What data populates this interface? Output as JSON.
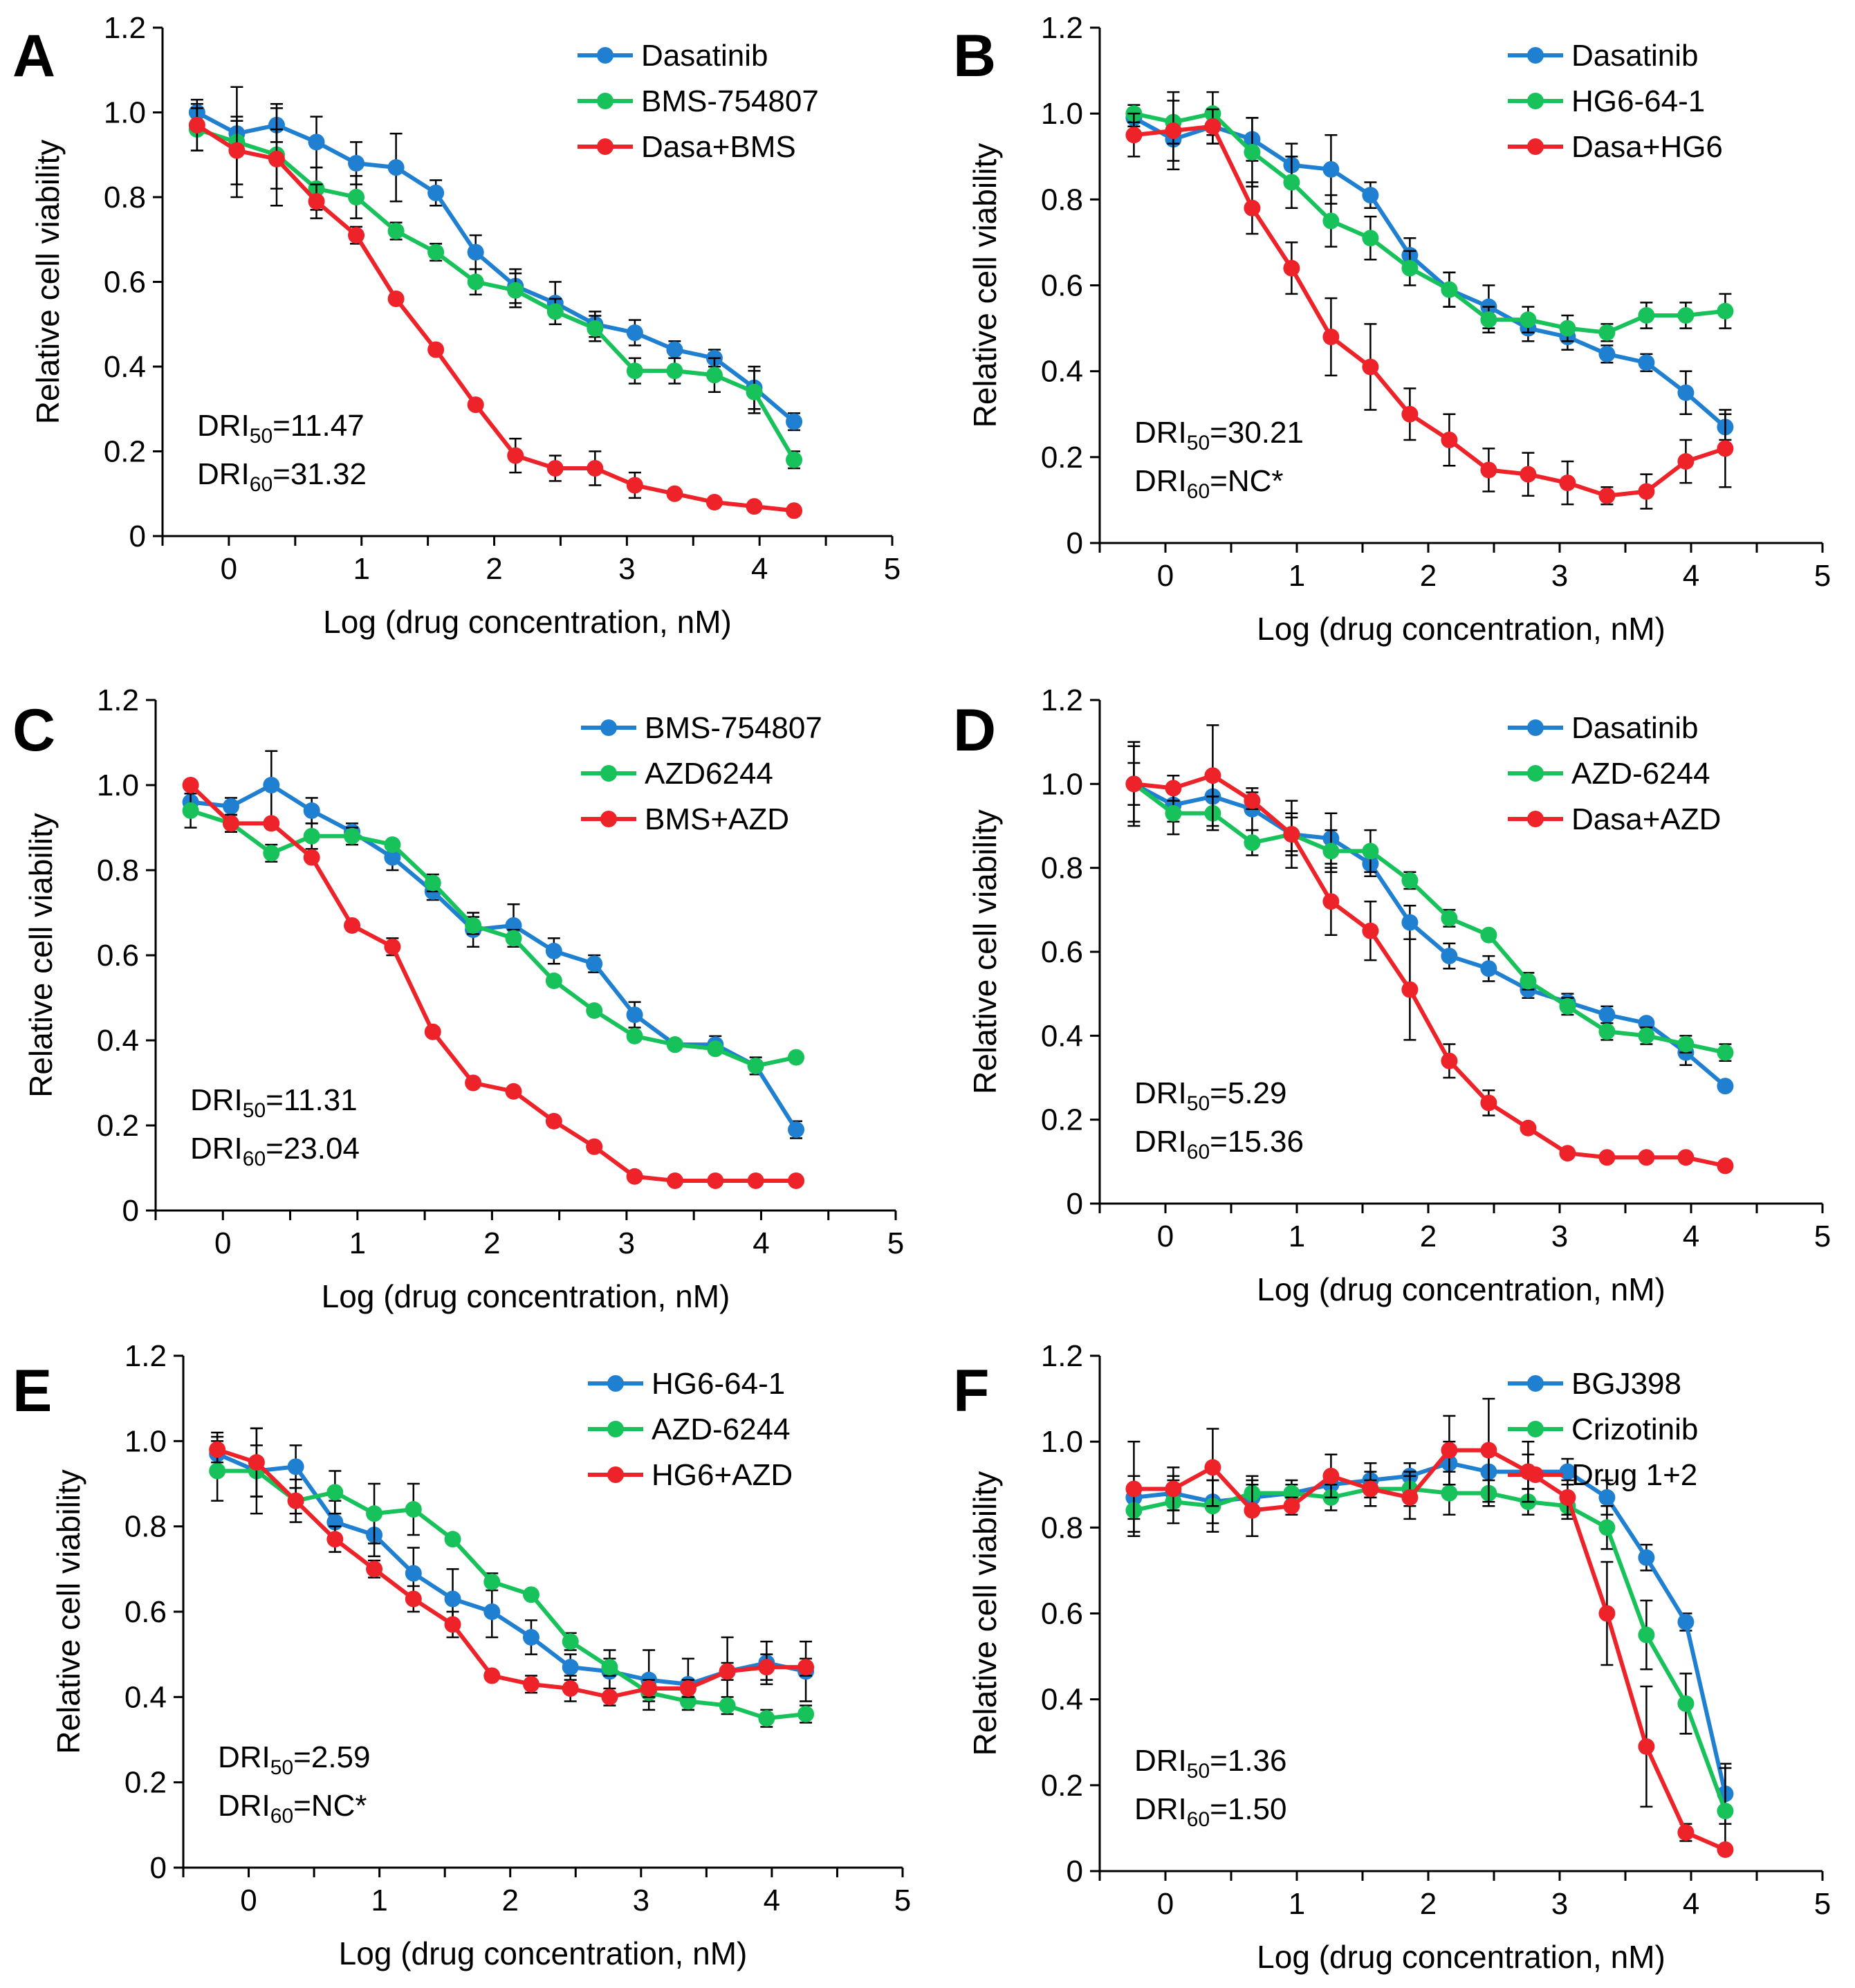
{
  "figure": {
    "x_title": "Log (drug concentration, nM)",
    "y_title": "Relative cell viability",
    "x_ticks": [
      "0",
      "1",
      "2",
      "3",
      "4",
      "5"
    ],
    "y_ticks": [
      "0",
      "0.2",
      "0.4",
      "0.6",
      "0.8",
      "1.0",
      "1.2"
    ],
    "colors": {
      "blue": "#1f7fd1",
      "green": "#17c25a",
      "red": "#ee2229"
    }
  },
  "chart_data": [
    {
      "panel": "A",
      "type": "line",
      "x": [
        -0.24,
        0.06,
        0.36,
        0.66,
        0.96,
        1.26,
        1.56,
        1.86,
        2.16,
        2.46,
        2.76,
        3.06,
        3.36,
        3.66,
        3.96,
        4.26
      ],
      "xlim": [
        -0.5,
        5
      ],
      "ylim": [
        0,
        1.2
      ],
      "xlabel": "Log (drug concentration, nM)",
      "ylabel": "Relative cell viability",
      "series": [
        {
          "name": "Dasatinib",
          "color": "blue",
          "values": [
            1.0,
            0.95,
            0.97,
            0.93,
            0.88,
            0.87,
            0.81,
            0.67,
            0.59,
            0.55,
            0.5,
            0.48,
            0.44,
            0.42,
            0.35,
            0.27
          ],
          "errors": [
            0.02,
            0.03,
            0.04,
            0.06,
            0.05,
            0.08,
            0.03,
            0.04,
            0.04,
            0.05,
            0.03,
            0.03,
            0.02,
            0.02,
            0.05,
            0.02
          ]
        },
        {
          "name": "BMS-754807",
          "color": "green",
          "values": [
            0.96,
            0.93,
            0.9,
            0.82,
            0.8,
            0.72,
            0.67,
            0.6,
            0.58,
            0.53,
            0.49,
            0.39,
            0.39,
            0.38,
            0.34,
            0.18
          ],
          "errors": [
            0.05,
            0.13,
            0.12,
            0.05,
            0.05,
            0.02,
            0.02,
            0.03,
            0.04,
            0.03,
            0.03,
            0.03,
            0.03,
            0.04,
            0.05,
            0.02
          ]
        },
        {
          "name": "Dasa+BMS",
          "color": "red",
          "values": [
            0.97,
            0.91,
            0.89,
            0.79,
            0.71,
            0.56,
            0.44,
            0.31,
            0.19,
            0.16,
            0.16,
            0.12,
            0.1,
            0.08,
            0.07,
            0.06
          ],
          "errors": [
            0.06,
            0.08,
            0.07,
            0.04,
            0.02,
            0.01,
            0.01,
            0.01,
            0.04,
            0.03,
            0.04,
            0.03,
            0.01,
            0.01,
            0.01,
            0.01
          ]
        }
      ],
      "annotation": {
        "dri50_label": "DRI",
        "dri50_sub": "50",
        "dri50_value": "=11.47",
        "dri60_label": "DRI",
        "dri60_sub": "60",
        "dri60_value": "=31.32"
      }
    },
    {
      "panel": "B",
      "type": "line",
      "x": [
        -0.24,
        0.06,
        0.36,
        0.66,
        0.96,
        1.26,
        1.56,
        1.86,
        2.16,
        2.46,
        2.76,
        3.06,
        3.36,
        3.66,
        3.96,
        4.26
      ],
      "xlim": [
        -0.5,
        5
      ],
      "ylim": [
        0,
        1.2
      ],
      "xlabel": "Log (drug concentration, nM)",
      "ylabel": "Relative cell viability",
      "series": [
        {
          "name": "Dasatinib",
          "color": "blue",
          "values": [
            0.99,
            0.94,
            0.97,
            0.94,
            0.88,
            0.87,
            0.81,
            0.67,
            0.59,
            0.55,
            0.5,
            0.48,
            0.44,
            0.42,
            0.35,
            0.27
          ],
          "errors": [
            0.02,
            0.05,
            0.04,
            0.05,
            0.05,
            0.08,
            0.03,
            0.04,
            0.04,
            0.05,
            0.03,
            0.03,
            0.02,
            0.02,
            0.05,
            0.03
          ]
        },
        {
          "name": "HG6-64-1",
          "color": "green",
          "values": [
            1.0,
            0.98,
            1.0,
            0.91,
            0.84,
            0.75,
            0.71,
            0.64,
            0.59,
            0.52,
            0.52,
            0.5,
            0.49,
            0.53,
            0.53,
            0.54
          ],
          "errors": [
            0.02,
            0.05,
            0.05,
            0.08,
            0.06,
            0.06,
            0.05,
            0.04,
            0.04,
            0.03,
            0.03,
            0.03,
            0.02,
            0.03,
            0.03,
            0.04
          ]
        },
        {
          "name": "Dasa+HG6",
          "color": "red",
          "values": [
            0.95,
            0.96,
            0.97,
            0.78,
            0.64,
            0.48,
            0.41,
            0.3,
            0.24,
            0.17,
            0.16,
            0.14,
            0.11,
            0.12,
            0.19,
            0.22
          ],
          "errors": [
            0.05,
            0.09,
            0.04,
            0.06,
            0.06,
            0.09,
            0.1,
            0.06,
            0.06,
            0.05,
            0.05,
            0.05,
            0.02,
            0.04,
            0.05,
            0.09
          ]
        }
      ],
      "annotation": {
        "dri50_label": "DRI",
        "dri50_sub": "50",
        "dri50_value": "=30.21",
        "dri60_label": "DRI",
        "dri60_sub": "60",
        "dri60_value": "=NC*"
      }
    },
    {
      "panel": "C",
      "type": "line",
      "x": [
        -0.24,
        0.06,
        0.36,
        0.66,
        0.96,
        1.26,
        1.56,
        1.86,
        2.16,
        2.46,
        2.76,
        3.06,
        3.36,
        3.66,
        3.96,
        4.26
      ],
      "xlim": [
        -0.5,
        5
      ],
      "ylim": [
        0,
        1.2
      ],
      "xlabel": "Log (drug concentration, nM)",
      "ylabel": "Relative cell viability",
      "series": [
        {
          "name": "BMS-754807",
          "color": "blue",
          "values": [
            0.96,
            0.95,
            1.0,
            0.94,
            0.89,
            0.83,
            0.75,
            0.66,
            0.67,
            0.61,
            0.58,
            0.46,
            0.39,
            0.39,
            0.34,
            0.19
          ],
          "errors": [
            0.02,
            0.02,
            0.08,
            0.03,
            0.02,
            0.03,
            0.02,
            0.04,
            0.05,
            0.03,
            0.02,
            0.03,
            0.01,
            0.02,
            0.02,
            0.02
          ]
        },
        {
          "name": "AZD6244",
          "color": "green",
          "values": [
            0.94,
            0.91,
            0.84,
            0.88,
            0.88,
            0.86,
            0.77,
            0.67,
            0.64,
            0.54,
            0.47,
            0.41,
            0.39,
            0.38,
            0.34,
            0.36
          ],
          "errors": [
            0.04,
            0.02,
            0.02,
            0.03,
            0.02,
            0.01,
            0.02,
            0.02,
            0.02,
            0.01,
            0.01,
            0.01,
            0.01,
            0.01,
            0.01,
            0.01
          ]
        },
        {
          "name": "BMS+AZD",
          "color": "red",
          "values": [
            1.0,
            0.91,
            0.91,
            0.83,
            0.67,
            0.62,
            0.42,
            0.3,
            0.28,
            0.21,
            0.15,
            0.08,
            0.07,
            0.07,
            0.07,
            0.07
          ],
          "errors": [
            0.01,
            0.02,
            0.01,
            0.01,
            0.01,
            0.02,
            0.01,
            0.01,
            0.01,
            0.01,
            0.01,
            0.01,
            0.01,
            0.01,
            0.01,
            0.01
          ]
        }
      ],
      "annotation": {
        "dri50_label": "DRI",
        "dri50_sub": "50",
        "dri50_value": "=11.31",
        "dri60_label": "DRI",
        "dri60_sub": "60",
        "dri60_value": "=23.04"
      }
    },
    {
      "panel": "D",
      "type": "line",
      "x": [
        -0.24,
        0.06,
        0.36,
        0.66,
        0.96,
        1.26,
        1.56,
        1.86,
        2.16,
        2.46,
        2.76,
        3.06,
        3.36,
        3.66,
        3.96,
        4.26
      ],
      "xlim": [
        -0.5,
        5
      ],
      "ylim": [
        0,
        1.2
      ],
      "xlabel": "Log (drug concentration, nM)",
      "ylabel": "Relative cell viability",
      "series": [
        {
          "name": "Dasatinib",
          "color": "blue",
          "values": [
            1.0,
            0.95,
            0.97,
            0.94,
            0.88,
            0.87,
            0.81,
            0.67,
            0.59,
            0.56,
            0.51,
            0.48,
            0.45,
            0.43,
            0.36,
            0.28
          ],
          "errors": [
            0.05,
            0.04,
            0.04,
            0.05,
            0.05,
            0.06,
            0.03,
            0.04,
            0.03,
            0.03,
            0.02,
            0.02,
            0.02,
            0.01,
            0.03,
            0.01
          ]
        },
        {
          "name": "AZD-6244",
          "color": "green",
          "values": [
            1.0,
            0.93,
            0.93,
            0.86,
            0.88,
            0.84,
            0.84,
            0.77,
            0.68,
            0.64,
            0.53,
            0.47,
            0.41,
            0.4,
            0.38,
            0.36
          ],
          "errors": [
            0.09,
            0.05,
            0.04,
            0.03,
            0.04,
            0.05,
            0.05,
            0.02,
            0.02,
            0.01,
            0.02,
            0.02,
            0.02,
            0.02,
            0.02,
            0.02
          ]
        },
        {
          "name": "Dasa+AZD",
          "color": "red",
          "values": [
            1.0,
            0.99,
            1.02,
            0.96,
            0.88,
            0.72,
            0.65,
            0.51,
            0.34,
            0.24,
            0.18,
            0.12,
            0.11,
            0.11,
            0.11,
            0.09
          ],
          "errors": [
            0.1,
            0.03,
            0.12,
            0.02,
            0.08,
            0.08,
            0.07,
            0.12,
            0.04,
            0.03,
            0.01,
            0.01,
            0.01,
            0.01,
            0.01,
            0.01
          ]
        }
      ],
      "annotation": {
        "dri50_label": "DRI",
        "dri50_sub": "50",
        "dri50_value": "=5.29",
        "dri60_label": "DRI",
        "dri60_sub": "60",
        "dri60_value": "=15.36"
      }
    },
    {
      "panel": "E",
      "type": "line",
      "x": [
        -0.24,
        0.06,
        0.36,
        0.66,
        0.96,
        1.26,
        1.56,
        1.86,
        2.16,
        2.46,
        2.76,
        3.06,
        3.36,
        3.66,
        3.96,
        4.26
      ],
      "xlim": [
        -0.5,
        5
      ],
      "ylim": [
        0,
        1.2
      ],
      "xlabel": "Log (drug concentration, nM)",
      "ylabel": "Relative cell viability",
      "series": [
        {
          "name": "HG6-64-1",
          "color": "blue",
          "values": [
            0.97,
            0.93,
            0.94,
            0.81,
            0.78,
            0.69,
            0.63,
            0.6,
            0.54,
            0.47,
            0.46,
            0.44,
            0.43,
            0.46,
            0.48,
            0.46
          ],
          "errors": [
            0.05,
            0.06,
            0.05,
            0.05,
            0.05,
            0.06,
            0.07,
            0.06,
            0.04,
            0.03,
            0.05,
            0.07,
            0.06,
            0.08,
            0.05,
            0.07
          ]
        },
        {
          "name": "AZD-6244",
          "color": "green",
          "values": [
            0.93,
            0.93,
            0.86,
            0.88,
            0.83,
            0.84,
            0.77,
            0.67,
            0.64,
            0.53,
            0.47,
            0.41,
            0.39,
            0.38,
            0.35,
            0.36
          ],
          "errors": [
            0.07,
            0.1,
            0.03,
            0.05,
            0.07,
            0.06,
            0.01,
            0.02,
            0.01,
            0.02,
            0.02,
            0.02,
            0.02,
            0.02,
            0.02,
            0.02
          ]
        },
        {
          "name": "HG6+AZD",
          "color": "red",
          "values": [
            0.98,
            0.95,
            0.86,
            0.77,
            0.7,
            0.63,
            0.57,
            0.45,
            0.43,
            0.42,
            0.4,
            0.42,
            0.42,
            0.46,
            0.47,
            0.47
          ],
          "errors": [
            0.03,
            0.08,
            0.05,
            0.03,
            0.02,
            0.03,
            0.03,
            0.01,
            0.02,
            0.03,
            0.02,
            0.02,
            0.02,
            0.02,
            0.03,
            0.02
          ]
        }
      ],
      "annotation": {
        "dri50_label": "DRI",
        "dri50_sub": "50",
        "dri50_value": "=2.59",
        "dri60_label": "DRI",
        "dri60_sub": "60",
        "dri60_value": "=NC*"
      }
    },
    {
      "panel": "F",
      "type": "line",
      "x": [
        -0.24,
        0.06,
        0.36,
        0.66,
        0.96,
        1.26,
        1.56,
        1.86,
        2.16,
        2.46,
        2.76,
        3.06,
        3.36,
        3.66,
        3.96,
        4.26
      ],
      "xlim": [
        -0.5,
        5
      ],
      "ylim": [
        0,
        1.2
      ],
      "xlabel": "Log (drug concentration, nM)",
      "ylabel": "Relative cell viability",
      "series": [
        {
          "name": "BGJ398",
          "color": "blue",
          "values": [
            0.87,
            0.88,
            0.86,
            0.87,
            0.88,
            0.9,
            0.91,
            0.92,
            0.95,
            0.93,
            0.93,
            0.93,
            0.87,
            0.73,
            0.58,
            0.18
          ],
          "errors": [
            0.05,
            0.04,
            0.05,
            0.04,
            0.02,
            0.03,
            0.04,
            0.03,
            0.05,
            0.04,
            0.04,
            0.03,
            0.04,
            0.03,
            0.02,
            0.07
          ]
        },
        {
          "name": "Crizotinib",
          "color": "green",
          "values": [
            0.84,
            0.86,
            0.85,
            0.88,
            0.88,
            0.87,
            0.89,
            0.89,
            0.88,
            0.88,
            0.86,
            0.85,
            0.8,
            0.55,
            0.39,
            0.14
          ],
          "errors": [
            0.05,
            0.05,
            0.06,
            0.04,
            0.03,
            0.03,
            0.04,
            0.04,
            0.05,
            0.03,
            0.03,
            0.03,
            0.05,
            0.08,
            0.07,
            0.1
          ]
        },
        {
          "name": "Drug 1+2",
          "color": "red",
          "values": [
            0.89,
            0.89,
            0.94,
            0.84,
            0.85,
            0.92,
            0.89,
            0.87,
            0.98,
            0.98,
            0.93,
            0.87,
            0.6,
            0.29,
            0.09,
            0.05
          ],
          "errors": [
            0.11,
            0.05,
            0.09,
            0.06,
            0.02,
            0.05,
            0.02,
            0.05,
            0.08,
            0.12,
            0.07,
            0.04,
            0.12,
            0.14,
            0.02,
            0.01
          ]
        }
      ],
      "annotation": {
        "dri50_label": "DRI",
        "dri50_sub": "50",
        "dri50_value": "=1.36",
        "dri60_label": "DRI",
        "dri60_sub": "60",
        "dri60_value": "=1.50"
      }
    }
  ]
}
